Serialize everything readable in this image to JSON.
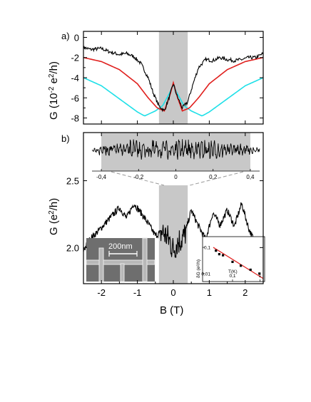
{
  "figure": {
    "panel_a_label": "a)",
    "panel_b_label": "b)",
    "xlabel": "B (T)",
    "ylabel_a_main": "G (10",
    "ylabel_a_exp": "-2",
    "ylabel_a_tail": " e",
    "ylabel_a_exp2": "2",
    "ylabel_a_end": "/h)",
    "ylabel_b_main": "G (e",
    "ylabel_b_exp": "2",
    "ylabel_b_end": "/h)",
    "scalebar_label": "200nm",
    "inset_xlabel": "T(K)",
    "inset_ylabel": "δG (e²/h)"
  },
  "colors": {
    "black": "#000000",
    "red": "#e0201e",
    "cyan": "#1fe0e8",
    "shade": "#c8c8c8"
  },
  "chart_data": [
    {
      "id": "panel-a",
      "type": "line",
      "xlim": [
        -2.5,
        2.5
      ],
      "ylim": [
        -8.6,
        0.6
      ],
      "xticks": [
        -2,
        -1,
        0,
        1,
        2
      ],
      "yticks": [
        0,
        -2,
        -4,
        -6,
        -8
      ],
      "ytick_labels": [
        "0",
        "-2",
        "-4",
        "-6",
        "-8"
      ],
      "shaded_region": [
        -0.4,
        0.4
      ],
      "series": [
        {
          "color": "black",
          "style": "noisy"
        },
        {
          "color": "red",
          "style": "smooth"
        },
        {
          "color": "cyan",
          "style": "smooth"
        }
      ],
      "samples": {
        "black": [
          [
            -2.5,
            -1.0
          ],
          [
            -2.3,
            -1.2
          ],
          [
            -2.0,
            -1.1
          ],
          [
            -1.8,
            -1.4
          ],
          [
            -1.5,
            -1.7
          ],
          [
            -1.3,
            -1.6
          ],
          [
            -1.1,
            -1.9
          ],
          [
            -0.9,
            -2.6
          ],
          [
            -0.7,
            -4.0
          ],
          [
            -0.55,
            -5.6
          ],
          [
            -0.4,
            -6.8
          ],
          [
            -0.25,
            -7.3
          ],
          [
            -0.1,
            -5.8
          ],
          [
            0.0,
            -4.6
          ],
          [
            0.1,
            -5.8
          ],
          [
            0.25,
            -7.0
          ],
          [
            0.4,
            -6.4
          ],
          [
            0.55,
            -4.6
          ],
          [
            0.7,
            -3.0
          ],
          [
            0.9,
            -2.2
          ],
          [
            1.1,
            -2.3
          ],
          [
            1.3,
            -2.0
          ],
          [
            1.5,
            -2.2
          ],
          [
            1.7,
            -2.3
          ],
          [
            1.9,
            -2.2
          ],
          [
            2.1,
            -2.0
          ],
          [
            2.3,
            -2.0
          ],
          [
            2.5,
            -1.6
          ]
        ],
        "red": [
          [
            -2.5,
            -2.0
          ],
          [
            -2.0,
            -2.4
          ],
          [
            -1.5,
            -3.2
          ],
          [
            -1.0,
            -4.6
          ],
          [
            -0.7,
            -6.0
          ],
          [
            -0.45,
            -7.0
          ],
          [
            -0.25,
            -7.3
          ],
          [
            -0.1,
            -5.8
          ],
          [
            0.0,
            -4.5
          ],
          [
            0.1,
            -5.8
          ],
          [
            0.25,
            -7.3
          ],
          [
            0.45,
            -7.0
          ],
          [
            0.7,
            -6.0
          ],
          [
            1.0,
            -4.6
          ],
          [
            1.5,
            -3.2
          ],
          [
            2.0,
            -2.4
          ],
          [
            2.5,
            -2.0
          ]
        ],
        "cyan": [
          [
            -2.5,
            -4.0
          ],
          [
            -2.0,
            -4.8
          ],
          [
            -1.5,
            -6.1
          ],
          [
            -1.0,
            -7.4
          ],
          [
            -0.8,
            -7.8
          ],
          [
            -0.5,
            -7.3
          ],
          [
            -0.3,
            -6.8
          ],
          [
            -0.1,
            -5.5
          ],
          [
            0.0,
            -4.7
          ],
          [
            0.1,
            -5.5
          ],
          [
            0.3,
            -6.8
          ],
          [
            0.5,
            -7.3
          ],
          [
            0.8,
            -7.8
          ],
          [
            1.0,
            -7.4
          ],
          [
            1.5,
            -6.1
          ],
          [
            2.0,
            -4.8
          ],
          [
            2.5,
            -4.0
          ]
        ]
      }
    },
    {
      "id": "panel-b",
      "type": "line",
      "xlim": [
        -2.5,
        2.5
      ],
      "ylim": [
        1.73,
        2.86
      ],
      "xticks": [
        -2,
        -1,
        0,
        1,
        2
      ],
      "xtick_labels": [
        "-2",
        "-1",
        "0",
        "1",
        "2"
      ],
      "yticks": [
        2.0,
        2.5
      ],
      "ytick_labels": [
        "2.0",
        "2.5"
      ],
      "shaded_region": [
        -0.4,
        0.4
      ],
      "series": [
        {
          "color": "black",
          "style": "noisy"
        }
      ],
      "samples": [
        [
          -2.5,
          1.98
        ],
        [
          -2.3,
          2.07
        ],
        [
          -2.1,
          2.12
        ],
        [
          -1.9,
          2.18
        ],
        [
          -1.7,
          2.24
        ],
        [
          -1.5,
          2.3
        ],
        [
          -1.3,
          2.22
        ],
        [
          -1.1,
          2.33
        ],
        [
          -0.9,
          2.26
        ],
        [
          -0.7,
          2.18
        ],
        [
          -0.5,
          2.09
        ],
        [
          -0.3,
          2.12
        ],
        [
          -0.1,
          2.05
        ],
        [
          0.0,
          1.98
        ],
        [
          0.1,
          2.04
        ],
        [
          0.3,
          2.08
        ],
        [
          0.5,
          2.28
        ],
        [
          0.7,
          2.16
        ],
        [
          0.9,
          2.06
        ],
        [
          1.1,
          2.26
        ],
        [
          1.3,
          2.17
        ],
        [
          1.5,
          2.28
        ],
        [
          1.7,
          2.16
        ],
        [
          1.9,
          2.33
        ],
        [
          2.1,
          2.14
        ],
        [
          2.3,
          2.02
        ],
        [
          2.5,
          1.97
        ]
      ]
    },
    {
      "id": "zoom-inset",
      "type": "line",
      "xlim": [
        -0.45,
        0.45
      ],
      "xticks": [
        -0.4,
        -0.2,
        0,
        0.2,
        0.4
      ],
      "xtick_labels": [
        "-0,4",
        "-0,2",
        "0",
        "0,2",
        "0,4"
      ],
      "shaded_region": [
        -0.4,
        0.4
      ],
      "series": [
        {
          "color": "black",
          "style": "noisy"
        }
      ]
    },
    {
      "id": "temperature-inset",
      "type": "scatter",
      "xscale": "log",
      "yscale": "log",
      "xlim": [
        0.02,
        1.3
      ],
      "ylim": [
        0.006,
        0.2
      ],
      "xticks": [
        0.1,
        1
      ],
      "xtick_labels": [
        "0,1",
        "1"
      ],
      "yticks": [
        0.1,
        0.01
      ],
      "ytick_labels": [
        "0,1",
        "0,01"
      ],
      "points": [
        [
          0.025,
          0.075
        ],
        [
          0.033,
          0.055
        ],
        [
          0.045,
          0.05
        ],
        [
          0.1,
          0.028
        ],
        [
          0.2,
          0.02
        ],
        [
          0.45,
          0.014
        ],
        [
          0.95,
          0.01
        ]
      ],
      "fit_line": [
        [
          0.02,
          0.1
        ],
        [
          1.3,
          0.0065
        ]
      ],
      "fit_color": "red"
    }
  ]
}
